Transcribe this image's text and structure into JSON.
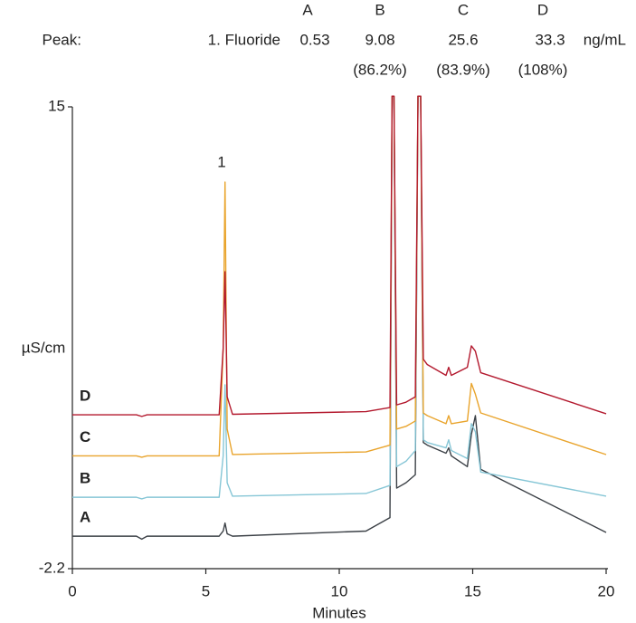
{
  "chart_data": {
    "type": "line",
    "peak_table": {
      "label": "Peak:",
      "columns": [
        "A",
        "B",
        "C",
        "D"
      ],
      "analyte": "1. Fluoride",
      "values": [
        0.53,
        9.08,
        25.6,
        33.3
      ],
      "unit": "ng/mL",
      "recoveries": [
        "(86.2%)",
        "(83.9%)",
        "(108%)"
      ]
    },
    "peak_label": "1",
    "xlabel": "Minutes",
    "ylabel": "µS/cm",
    "xlim": [
      0,
      20
    ],
    "xticks": [
      0,
      5,
      10,
      15,
      20
    ],
    "ylim": [
      -2.2,
      15
    ],
    "yticks": [
      -2.2,
      15
    ],
    "x": [
      0,
      2.4,
      2.6,
      2.8,
      5.5,
      5.65,
      5.72,
      5.8,
      6.0,
      11.0,
      11.9,
      11.98,
      12.05,
      12.15,
      12.5,
      12.85,
      12.95,
      13.05,
      13.15,
      13.3,
      14.0,
      14.1,
      14.2,
      14.8,
      14.95,
      15.1,
      15.3,
      20
    ],
    "series": [
      {
        "name": "A",
        "color": "#3b4046",
        "values": [
          -0.99,
          -0.99,
          -1.1,
          -0.99,
          -0.99,
          -0.8,
          -0.5,
          -0.9,
          -0.99,
          -0.8,
          -0.3,
          15.4,
          15.4,
          0.8,
          1.0,
          1.3,
          15.4,
          15.4,
          2.5,
          2.4,
          2.1,
          2.3,
          2.0,
          1.6,
          2.8,
          3.5,
          1.5,
          -0.85
        ]
      },
      {
        "name": "B",
        "color": "#86c6d6",
        "values": [
          0.46,
          0.46,
          0.4,
          0.46,
          0.46,
          2,
          4.65,
          1,
          0.5,
          0.6,
          0.9,
          15.4,
          15.4,
          1.6,
          1.8,
          2.2,
          15.4,
          15.4,
          2.6,
          2.5,
          2.3,
          2.6,
          2.2,
          1.9,
          3.2,
          2.9,
          1.4,
          0.5
        ]
      },
      {
        "name": "C",
        "color": "#e9a42c",
        "values": [
          2.0,
          2.0,
          1.95,
          2.0,
          2.0,
          6,
          12.2,
          3,
          2.05,
          2.15,
          2.4,
          15.4,
          15.4,
          3.0,
          3.1,
          3.3,
          15.4,
          15.4,
          3.6,
          3.5,
          3.2,
          3.5,
          3.2,
          3.3,
          4.7,
          4.3,
          3.6,
          2.05
        ]
      },
      {
        "name": "D",
        "color": "#b3192e",
        "values": [
          3.53,
          3.53,
          3.47,
          3.53,
          3.53,
          6,
          8.86,
          4.2,
          3.55,
          3.65,
          3.8,
          15.4,
          15.4,
          3.9,
          4.0,
          4.2,
          15.4,
          15.4,
          5.6,
          5.4,
          5.0,
          5.3,
          5.0,
          5.3,
          6.1,
          5.9,
          5.1,
          3.57
        ]
      }
    ]
  }
}
